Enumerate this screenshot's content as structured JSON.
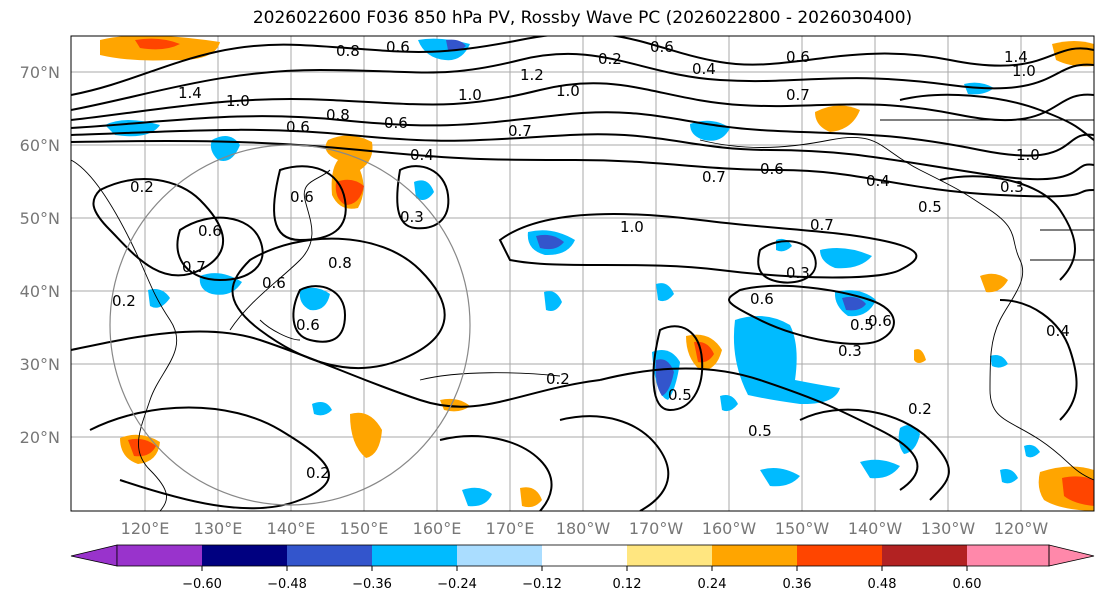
{
  "title": "2026022600 F036 850 hPa PV, Rossby Wave PC (2026022800 - 2026030400)",
  "lat_labels": [
    "70°N",
    "60°N",
    "50°N",
    "40°N",
    "30°N",
    "20°N"
  ],
  "lon_labels": [
    "120°E",
    "130°E",
    "140°E",
    "150°E",
    "160°E",
    "170°E",
    "180°W",
    "170°W",
    "160°W",
    "150°W",
    "140°W",
    "130°W",
    "120°W"
  ],
  "colorbar": {
    "tick_labels": [
      "−0.60",
      "−0.48",
      "−0.36",
      "−0.24",
      "−0.12",
      "0.12",
      "0.24",
      "0.36",
      "0.48",
      "0.60"
    ],
    "colors": [
      "#9933cc",
      "#000080",
      "#3355cc",
      "#00bbff",
      "#aaddff",
      "#ffffff",
      "#ffe680",
      "#ffa500",
      "#ff4500",
      "#b22222",
      "#ff88aa"
    ]
  },
  "contour_labels": [
    "0.8",
    "0.6",
    "1.4",
    "1.0",
    "0.6",
    "0.8",
    "0.6",
    "1.0",
    "1.2",
    "1.0",
    "0.7",
    "0.6",
    "0.4",
    "0.6",
    "1.4",
    "1.0",
    "0.7",
    "0.2",
    "0.4",
    "0.6",
    "0.3",
    "0.6",
    "0.7",
    "0.8",
    "0.6",
    "0.2",
    "0.6",
    "0.7",
    "1.0",
    "0.5",
    "0.3",
    "0.6",
    "0.4",
    "0.7",
    "0.6",
    "0.5",
    "0.3",
    "0.2",
    "0.5",
    "0.3",
    "0.2",
    "0.2",
    "0.2",
    "0.4",
    "0.5",
    "1.0",
    "0.6"
  ]
}
